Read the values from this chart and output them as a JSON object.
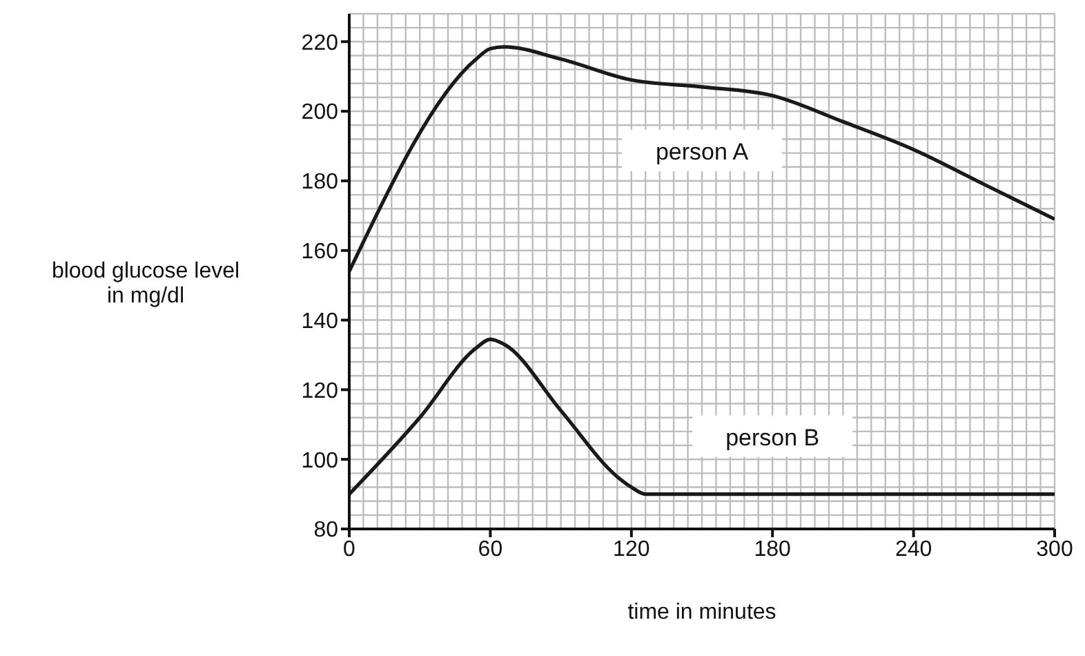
{
  "chart_data": {
    "type": "line",
    "xlabel": "time in minutes",
    "ylabel": "blood glucose level\nin mg/dl",
    "xlim": [
      0,
      300
    ],
    "ylim": [
      80,
      228
    ],
    "xticks": [
      0,
      60,
      120,
      180,
      240,
      300
    ],
    "yticks": [
      80,
      100,
      120,
      140,
      160,
      180,
      200,
      220
    ],
    "grid": true,
    "marker": "none",
    "line_style": "solid",
    "series": [
      {
        "name": "person A",
        "color": "#1a1a1a",
        "x": [
          0,
          54,
          60,
          66,
          90,
          120,
          150,
          180,
          210,
          240,
          270,
          300
        ],
        "values": [
          154,
          215,
          218,
          218.5,
          215,
          209,
          207,
          204.5,
          197,
          189,
          179,
          169
        ]
      },
      {
        "name": "person B",
        "color": "#1a1a1a",
        "x": [
          0,
          30,
          54,
          60,
          66,
          90,
          114,
          120,
          126,
          180,
          300
        ],
        "values": [
          90,
          112,
          132,
          134.5,
          133,
          114,
          95,
          92,
          90,
          90,
          90
        ]
      }
    ]
  }
}
